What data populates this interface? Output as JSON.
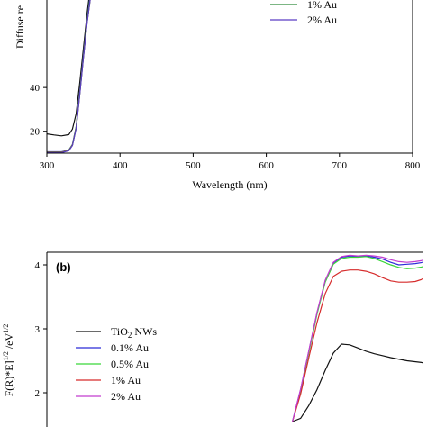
{
  "chart_data": [
    {
      "type": "line",
      "xlabel": "Wavelength (nm)",
      "ylabel": "Diffuse re",
      "xlim": [
        300,
        800
      ],
      "ylim": [
        10,
        80
      ],
      "x_ticks": [
        300,
        400,
        500,
        600,
        700,
        800
      ],
      "y_ticks": [
        20,
        40
      ],
      "legend_placement": "top-right",
      "legend_visible": [
        "1% Au",
        "2% Au"
      ],
      "series": [
        {
          "name": "",
          "color": "#111111",
          "x": [
            300,
            310,
            320,
            330,
            335,
            340,
            345,
            350,
            355,
            358
          ],
          "y": [
            18.8,
            18.3,
            17.9,
            18.5,
            21,
            28,
            42,
            58,
            74,
            82
          ]
        },
        {
          "name": "",
          "color": "#2b2bd8",
          "x": [
            300,
            320,
            330,
            335,
            340,
            345,
            350,
            355,
            360
          ],
          "y": [
            10.6,
            10.6,
            11.5,
            14,
            22,
            38,
            55,
            71,
            84
          ]
        },
        {
          "name": "",
          "color": "#39d639",
          "x": [
            300,
            320,
            330,
            335,
            340,
            345,
            350,
            355,
            360
          ],
          "y": [
            10.5,
            10.5,
            11.4,
            13.9,
            22,
            37.5,
            54.5,
            70.5,
            83
          ]
        },
        {
          "name": "",
          "color": "#d62b2b",
          "x": [
            300,
            320,
            330,
            335,
            340,
            345,
            350,
            355,
            360
          ],
          "y": [
            10.4,
            10.4,
            11.3,
            13.7,
            21.5,
            37,
            54,
            70,
            82
          ]
        },
        {
          "name": "1% Au",
          "color": "#2e8b3a",
          "x": [
            300,
            320,
            330,
            335,
            340,
            345,
            350,
            355,
            360
          ],
          "y": [
            10.3,
            10.3,
            11.2,
            13.6,
            21.3,
            36.8,
            53.8,
            69.8,
            82
          ]
        },
        {
          "name": "2% Au",
          "color": "#5b3cc4",
          "x": [
            300,
            320,
            330,
            335,
            340,
            345,
            350,
            355,
            360
          ],
          "y": [
            10.2,
            10.2,
            11.1,
            13.5,
            21.2,
            36.6,
            53.6,
            69.6,
            82
          ]
        }
      ]
    },
    {
      "type": "line",
      "panel_label": "(b)",
      "ylabel": "F(R)*E]^1/2 /eV^1/2",
      "ylim": [
        1.6,
        4.2
      ],
      "y_ticks": [
        2,
        3,
        4
      ],
      "legend_placement": "left",
      "series": [
        {
          "name": "TiO2 NWs",
          "color": "#111111",
          "x": [
            3.0,
            3.05,
            3.1,
            3.15,
            3.2,
            3.25,
            3.3,
            3.35,
            3.4,
            3.45,
            3.5,
            3.55,
            3.6,
            3.7,
            3.8
          ],
          "y": [
            1.55,
            1.6,
            1.8,
            2.05,
            2.35,
            2.62,
            2.76,
            2.75,
            2.7,
            2.65,
            2.61,
            2.58,
            2.55,
            2.5,
            2.47
          ]
        },
        {
          "name": "0.1% Au",
          "color": "#2b2bd8",
          "x": [
            3.0,
            3.05,
            3.1,
            3.15,
            3.2,
            3.25,
            3.3,
            3.35,
            3.4,
            3.45,
            3.5,
            3.55,
            3.6,
            3.65,
            3.7,
            3.75,
            3.8
          ],
          "y": [
            1.55,
            2.05,
            2.65,
            3.25,
            3.75,
            4.03,
            4.12,
            4.14,
            4.13,
            4.14,
            4.12,
            4.09,
            4.04,
            4.0,
            4.01,
            4.02,
            4.04
          ]
        },
        {
          "name": "0.5% Au",
          "color": "#39d639",
          "x": [
            3.0,
            3.05,
            3.1,
            3.15,
            3.2,
            3.25,
            3.3,
            3.35,
            3.4,
            3.45,
            3.5,
            3.55,
            3.6,
            3.65,
            3.7,
            3.75,
            3.8
          ],
          "y": [
            1.55,
            2.03,
            2.63,
            3.23,
            3.73,
            4.01,
            4.1,
            4.12,
            4.12,
            4.13,
            4.1,
            4.05,
            4.0,
            3.96,
            3.94,
            3.95,
            3.97
          ]
        },
        {
          "name": "1% Au",
          "color": "#d62b2b",
          "x": [
            3.0,
            3.05,
            3.1,
            3.15,
            3.2,
            3.25,
            3.3,
            3.35,
            3.4,
            3.45,
            3.5,
            3.55,
            3.6,
            3.65,
            3.7,
            3.75,
            3.8
          ],
          "y": [
            1.55,
            1.98,
            2.55,
            3.1,
            3.55,
            3.82,
            3.9,
            3.92,
            3.92,
            3.9,
            3.86,
            3.8,
            3.75,
            3.73,
            3.73,
            3.74,
            3.78
          ]
        },
        {
          "name": "2% Au",
          "color": "#c23ccf",
          "x": [
            3.0,
            3.05,
            3.1,
            3.15,
            3.2,
            3.25,
            3.3,
            3.35,
            3.4,
            3.45,
            3.5,
            3.55,
            3.6,
            3.65,
            3.7,
            3.75,
            3.8
          ],
          "y": [
            1.55,
            2.06,
            2.66,
            3.26,
            3.76,
            4.04,
            4.13,
            4.15,
            4.14,
            4.15,
            4.14,
            4.12,
            4.08,
            4.05,
            4.04,
            4.05,
            4.07
          ]
        }
      ]
    }
  ],
  "labels": {
    "top_ylabel": "Diffuse re",
    "top_xlabel": "Wavelength (nm)",
    "bottom_panel": "(b)",
    "bottom_ylabel": "F(R)*E]",
    "bottom_ylabel_sup1": "1/2",
    "bottom_ylabel_unit": " /eV",
    "bottom_ylabel_sup2": "1/2"
  },
  "legend_b": [
    {
      "text": "TiO",
      "sub": "2",
      "rest": " NWs"
    },
    {
      "text": "0.1% Au"
    },
    {
      "text": "0.5% Au"
    },
    {
      "text": "1% Au"
    },
    {
      "text": "2% Au"
    }
  ]
}
